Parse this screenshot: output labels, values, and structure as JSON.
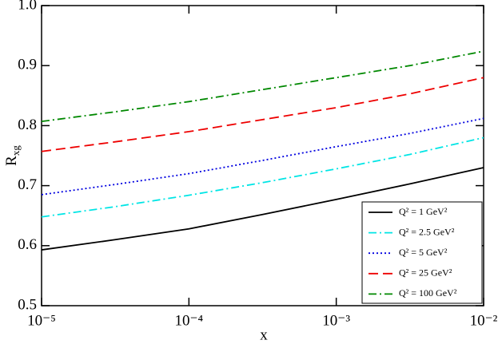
{
  "chart_data": {
    "type": "line",
    "xlabel": "x",
    "ylabel": {
      "text": "R",
      "sub": "xg"
    },
    "xscale": "log",
    "x": [
      1e-05,
      3.16e-05,
      0.0001,
      0.000316,
      0.001,
      0.00316,
      0.01
    ],
    "xlim": [
      1e-05,
      0.01
    ],
    "xticks": [
      {
        "value": 1e-05,
        "label": "10⁻⁵"
      },
      {
        "value": 0.0001,
        "label": "10⁻⁴"
      },
      {
        "value": 0.001,
        "label": "10⁻³"
      },
      {
        "value": 0.01,
        "label": "10⁻²"
      }
    ],
    "ylim": [
      0.5,
      1
    ],
    "yticks": [
      0.5,
      0.6,
      0.7,
      0.8,
      0.9,
      {
        "value": 1,
        "label": "1.0"
      }
    ],
    "legend": "bottom-right",
    "series": [
      {
        "name": "Q² = 1 GeV²",
        "color": "#000000",
        "style": "solid",
        "values": [
          0.593,
          0.61,
          0.628,
          0.652,
          0.677,
          0.703,
          0.73
        ]
      },
      {
        "name": "Q² = 2.5 GeV²",
        "color": "#00e5e5",
        "style": "dashdot",
        "values": [
          0.648,
          0.665,
          0.684,
          0.705,
          0.728,
          0.752,
          0.78
        ]
      },
      {
        "name": "Q² = 5 GeV²",
        "color": "#0000e0",
        "style": "dotted",
        "values": [
          0.685,
          0.702,
          0.72,
          0.742,
          0.765,
          0.787,
          0.812
        ]
      },
      {
        "name": "Q² = 25 GeV²",
        "color": "#ee0000",
        "style": "dashed",
        "values": [
          0.757,
          0.773,
          0.79,
          0.81,
          0.83,
          0.853,
          0.88
        ]
      },
      {
        "name": "Q² = 100 GeV²",
        "color": "#008800",
        "style": "dashdot",
        "values": [
          0.807,
          0.823,
          0.84,
          0.86,
          0.88,
          0.9,
          0.924
        ]
      }
    ]
  }
}
